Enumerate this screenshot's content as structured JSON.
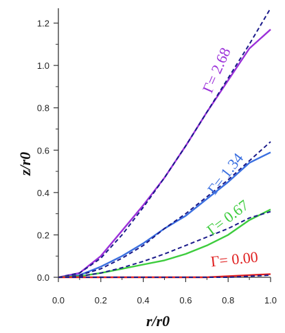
{
  "chart_data": {
    "type": "line",
    "title": "",
    "xlabel": "r/r0",
    "ylabel": "z/r0",
    "xlim": [
      0.0,
      1.0
    ],
    "ylim": [
      0.0,
      1.27
    ],
    "xticks": [
      "0.0",
      "0.2",
      "0.4",
      "0.6",
      "0.8",
      "1.0"
    ],
    "yticks": [
      "0.0",
      "0.2",
      "0.4",
      "0.6",
      "0.8",
      "1.0",
      "1.2"
    ],
    "grid": false,
    "legend": "none",
    "series": [
      {
        "name": "Γ= 2.68",
        "color": "#9b30d9",
        "x": [
          0.0,
          0.1,
          0.2,
          0.3,
          0.4,
          0.5,
          0.6,
          0.7,
          0.8,
          0.9,
          1.0
        ],
        "solid": [
          0.0,
          0.02,
          0.1,
          0.22,
          0.34,
          0.47,
          0.62,
          0.78,
          0.93,
          1.08,
          1.17
        ],
        "dashed": [
          0.0,
          0.02,
          0.09,
          0.2,
          0.33,
          0.47,
          0.62,
          0.78,
          0.94,
          1.1,
          1.27
        ]
      },
      {
        "name": "Γ= 1.34",
        "color": "#3a6fe0",
        "x": [
          0.0,
          0.1,
          0.2,
          0.3,
          0.4,
          0.5,
          0.6,
          0.7,
          0.8,
          0.9,
          1.0
        ],
        "solid": [
          0.0,
          0.01,
          0.05,
          0.1,
          0.16,
          0.23,
          0.29,
          0.37,
          0.45,
          0.54,
          0.59
        ],
        "dashed": [
          0.0,
          0.01,
          0.04,
          0.09,
          0.15,
          0.23,
          0.3,
          0.38,
          0.46,
          0.55,
          0.64
        ]
      },
      {
        "name": "Γ= 0.67",
        "color": "#3dcc3d",
        "x": [
          0.0,
          0.1,
          0.2,
          0.3,
          0.4,
          0.5,
          0.6,
          0.7,
          0.8,
          0.9,
          1.0
        ],
        "solid": [
          0.0,
          0.005,
          0.02,
          0.04,
          0.06,
          0.08,
          0.11,
          0.15,
          0.2,
          0.27,
          0.32
        ],
        "dashed": [
          0.0,
          0.005,
          0.02,
          0.045,
          0.075,
          0.11,
          0.15,
          0.19,
          0.23,
          0.28,
          0.31
        ]
      },
      {
        "name": "Γ= 0.00",
        "color": "#e02020",
        "x": [
          0.0,
          0.1,
          0.2,
          0.3,
          0.4,
          0.5,
          0.6,
          0.7,
          0.8,
          0.9,
          1.0
        ],
        "solid": [
          0.0,
          0.0,
          0.0,
          0.0,
          0.0,
          0.0,
          0.0,
          0.0,
          0.005,
          0.01,
          0.015
        ],
        "dashed": [
          0.0,
          0.0,
          0.0,
          0.0,
          0.0,
          0.0,
          0.0,
          0.0,
          0.0,
          0.005,
          0.01
        ]
      }
    ],
    "dashed_color": "#1a1a8a"
  }
}
